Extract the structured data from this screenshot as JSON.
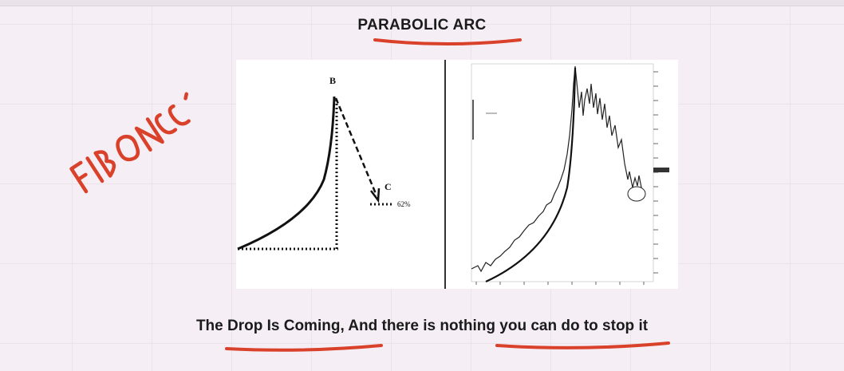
{
  "slide": {
    "title": "PARABOLIC ARC",
    "caption": "The Drop Is Coming, And there is nothing you can do to stop it",
    "annotation": "FIBONACCI",
    "accent_color": "#d9412b"
  },
  "diagram": {
    "point_b": "B",
    "point_c": "C",
    "retracement_label": "62%"
  }
}
